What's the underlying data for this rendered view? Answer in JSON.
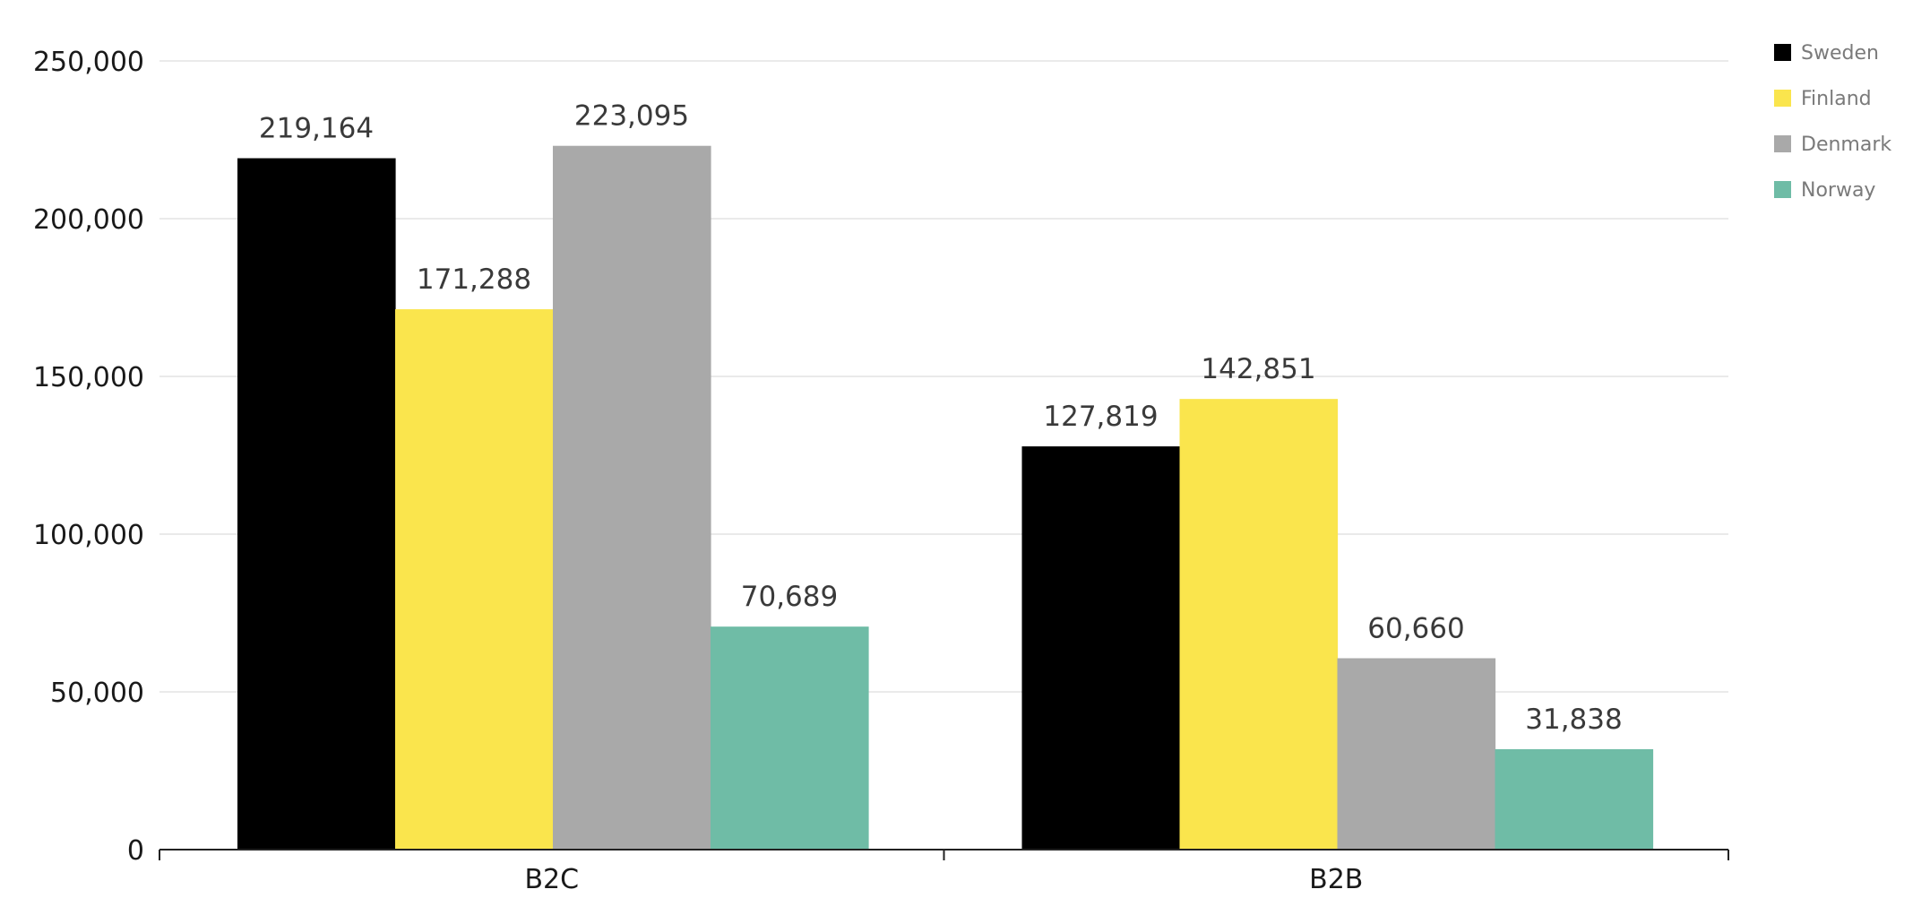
{
  "chart_data": {
    "type": "bar",
    "categories": [
      "B2C",
      "B2B"
    ],
    "series": [
      {
        "name": "Sweden",
        "color": "#000000",
        "values": [
          219164,
          127819
        ],
        "labels": [
          "219,164",
          "127,819"
        ]
      },
      {
        "name": "Finland",
        "color": "#fae54d",
        "values": [
          171288,
          142851
        ],
        "labels": [
          "171,288",
          "142,851"
        ]
      },
      {
        "name": "Denmark",
        "color": "#a9a9a9",
        "values": [
          223095,
          60660
        ],
        "labels": [
          "223,095",
          "60,660"
        ]
      },
      {
        "name": "Norway",
        "color": "#6fbca6",
        "values": [
          70689,
          31838
        ],
        "labels": [
          "70,689",
          "31,838"
        ]
      }
    ],
    "ylim": [
      0,
      250000
    ],
    "yticks": [
      0,
      50000,
      100000,
      150000,
      200000,
      250000
    ],
    "ytick_labels": [
      "0",
      "50,000",
      "100,000",
      "150,000",
      "200,000",
      "250,000"
    ],
    "title": "",
    "xlabel": "",
    "ylabel": "",
    "grid": true,
    "legend": "top-right"
  }
}
